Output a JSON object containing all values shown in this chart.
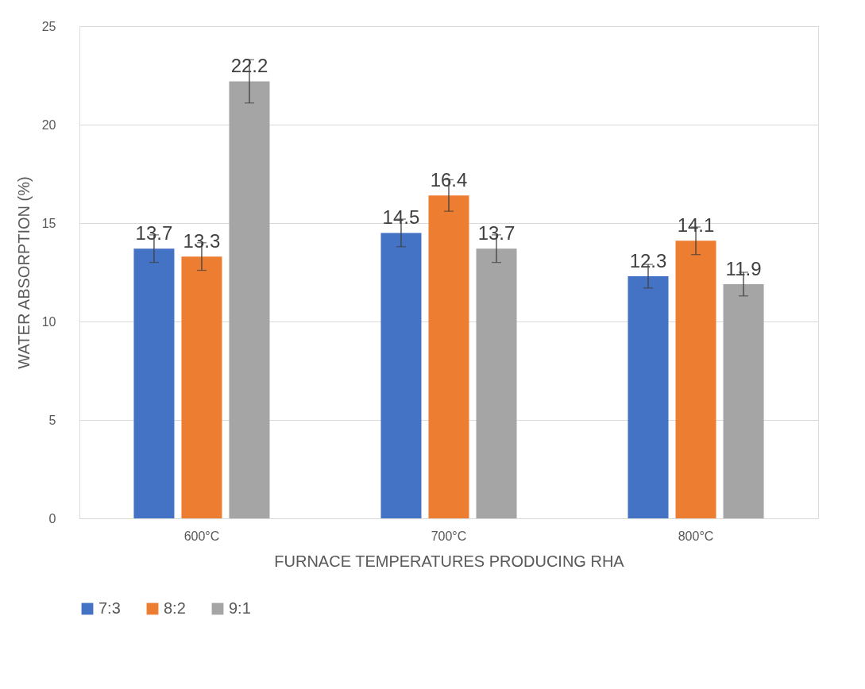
{
  "chart_data": {
    "type": "bar",
    "xlabel": "FURNACE TEMPERATURES PRODUCING RHA",
    "ylabel": "WATER ABSORPTION (%)",
    "categories": [
      "600°C",
      "700°C",
      "800°C"
    ],
    "series": [
      {
        "name": "7:3",
        "color": "#4472c4",
        "values": [
          13.7,
          14.5,
          12.3
        ],
        "errors": [
          0.7,
          0.7,
          0.6
        ]
      },
      {
        "name": "8:2",
        "color": "#ed7d31",
        "values": [
          13.3,
          16.4,
          14.1
        ],
        "errors": [
          0.7,
          0.8,
          0.7
        ]
      },
      {
        "name": "9:1",
        "color": "#a5a5a5",
        "values": [
          22.2,
          13.7,
          11.9
        ],
        "errors": [
          1.1,
          0.7,
          0.6
        ]
      }
    ],
    "ylim": [
      0,
      25
    ],
    "yticks": [
      0,
      5,
      10,
      15,
      20,
      25
    ],
    "grid": "y",
    "legend": "bottom",
    "data_labels": true
  }
}
